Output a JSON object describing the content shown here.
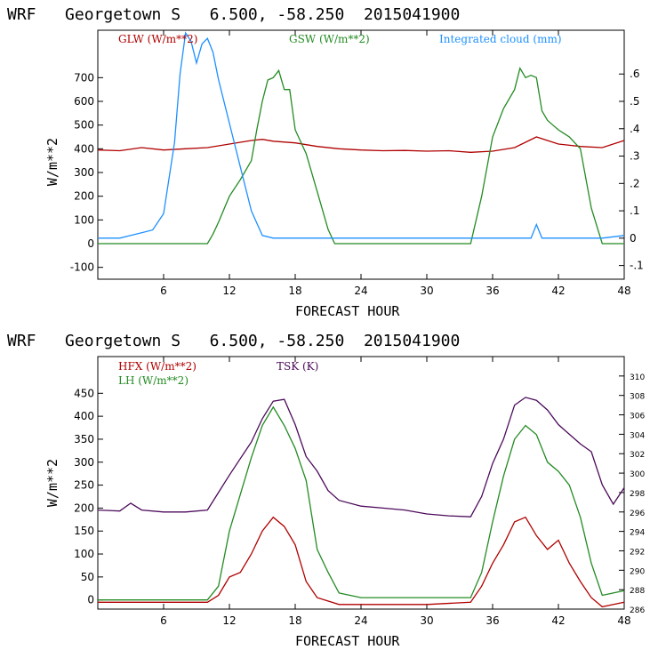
{
  "colors": {
    "red": "#b00000",
    "green": "#238b23",
    "blue": "#1e90ff",
    "purple": "#4b0a5a",
    "frame": "#000000"
  },
  "chart_data": [
    {
      "type": "line",
      "title": "WRF   Georgetown S   6.500, -58.250  2015041900",
      "xlabel": "FORECAST HOUR",
      "ylabel": "W/m**2",
      "xlim": [
        0,
        48
      ],
      "ylim": [
        -150,
        900
      ],
      "y2lim": [
        -0.15,
        0.76
      ],
      "x_ticks": [
        "6",
        "12",
        "18",
        "24",
        "30",
        "36",
        "42",
        "48"
      ],
      "y_ticks": [
        "-100",
        "0",
        "100",
        "200",
        "300",
        "400",
        "500",
        "600",
        "700"
      ],
      "y2_ticks": [
        "-.1",
        "0",
        ".1",
        ".2",
        ".3",
        ".4",
        ".5",
        ".6"
      ],
      "series": [
        {
          "name": "GLW (W/m**2)",
          "axis": "left",
          "x": [
            0,
            2,
            4,
            6,
            8,
            10,
            12,
            14,
            15,
            16,
            18,
            20,
            22,
            24,
            26,
            28,
            30,
            32,
            34,
            36,
            38,
            40,
            42,
            44,
            46,
            48
          ],
          "values": [
            395,
            392,
            405,
            395,
            400,
            405,
            420,
            435,
            440,
            432,
            425,
            410,
            400,
            395,
            392,
            393,
            390,
            392,
            385,
            390,
            405,
            450,
            420,
            410,
            405,
            435
          ]
        },
        {
          "name": "GSW (W/m**2)",
          "axis": "left",
          "x": [
            0,
            10,
            10.5,
            11,
            12,
            13,
            14,
            14.5,
            15,
            15.5,
            16,
            16.5,
            17,
            17.5,
            18,
            19,
            20,
            21,
            21.6,
            34,
            35,
            36,
            37,
            38,
            38.5,
            39,
            39.5,
            40,
            40.5,
            41,
            41.5,
            42,
            43,
            44,
            45,
            46,
            48
          ],
          "values": [
            0,
            0,
            40,
            90,
            200,
            270,
            350,
            480,
            600,
            690,
            700,
            730,
            650,
            650,
            480,
            380,
            220,
            60,
            0,
            0,
            200,
            450,
            570,
            650,
            740,
            700,
            710,
            700,
            560,
            520,
            500,
            480,
            450,
            400,
            150,
            0,
            0
          ]
        },
        {
          "name": "Integrated cloud (mm)",
          "axis": "right",
          "x": [
            0,
            2,
            3,
            4,
            5,
            6,
            7,
            7.5,
            8,
            8.5,
            9,
            9.5,
            10,
            10.5,
            11,
            12,
            13,
            14,
            15,
            16,
            20,
            24,
            39.5,
            40,
            40.5,
            46,
            48
          ],
          "values": [
            0,
            0,
            0.01,
            0.02,
            0.03,
            0.09,
            0.35,
            0.6,
            0.75,
            0.72,
            0.64,
            0.71,
            0.73,
            0.68,
            0.58,
            0.42,
            0.26,
            0.1,
            0.01,
            0,
            0,
            0,
            0,
            0.05,
            0,
            0,
            0.01
          ]
        }
      ]
    },
    {
      "type": "line",
      "title": "WRF   Georgetown S   6.500, -58.250  2015041900",
      "xlabel": "FORECAST HOUR",
      "ylabel": "W/m**2",
      "xlim": [
        0,
        48
      ],
      "ylim": [
        -20,
        530
      ],
      "y2lim": [
        286,
        312
      ],
      "x_ticks": [
        "6",
        "12",
        "18",
        "24",
        "30",
        "36",
        "42",
        "48"
      ],
      "y_ticks": [
        "0",
        "50",
        "100",
        "150",
        "200",
        "250",
        "300",
        "350",
        "400",
        "450"
      ],
      "y2_ticks": [
        "286",
        "288",
        "290",
        "292",
        "294",
        "296",
        "298",
        "300",
        "302",
        "304",
        "306",
        "308",
        "310"
      ],
      "series": [
        {
          "name": "HFX (W/m**2)",
          "axis": "left",
          "x": [
            0,
            6,
            10,
            11,
            12,
            13,
            14,
            15,
            16,
            17,
            18,
            19,
            20,
            22,
            24,
            30,
            34,
            35,
            36,
            37,
            38,
            39,
            40,
            41,
            42,
            43,
            44,
            45,
            46,
            48
          ],
          "values": [
            -5,
            -5,
            -5,
            10,
            50,
            60,
            100,
            150,
            180,
            160,
            120,
            40,
            5,
            -10,
            -10,
            -10,
            -5,
            30,
            80,
            120,
            170,
            180,
            140,
            110,
            130,
            80,
            40,
            5,
            -15,
            -5
          ]
        },
        {
          "name": "LH (W/m**2)",
          "axis": "left",
          "x": [
            0,
            6,
            10,
            11,
            12,
            13,
            14,
            15,
            16,
            17,
            18,
            19,
            20,
            21,
            22,
            24,
            30,
            34,
            35,
            36,
            37,
            38,
            39,
            40,
            41,
            42,
            43,
            44,
            45,
            46,
            48
          ],
          "values": [
            0,
            0,
            0,
            30,
            150,
            230,
            310,
            380,
            420,
            380,
            330,
            260,
            110,
            60,
            15,
            5,
            5,
            5,
            60,
            170,
            270,
            350,
            380,
            360,
            300,
            280,
            250,
            180,
            80,
            10,
            20
          ]
        },
        {
          "name": "TSK (K)",
          "axis": "right",
          "x": [
            0,
            2,
            3,
            4,
            6,
            8,
            10,
            11,
            12,
            13,
            14,
            15,
            16,
            17,
            18,
            19,
            20,
            21,
            22,
            24,
            26,
            28,
            30,
            32,
            34,
            35,
            36,
            37,
            38,
            39,
            40,
            41,
            42,
            43,
            44,
            45,
            46,
            47,
            48
          ],
          "values": [
            296.2,
            296.1,
            296.9,
            296.2,
            296.0,
            296.0,
            296.2,
            298.0,
            299.8,
            301.5,
            303.2,
            305.6,
            307.4,
            307.6,
            305.0,
            301.7,
            300.2,
            298.2,
            297.2,
            296.6,
            296.4,
            296.2,
            295.8,
            295.6,
            295.5,
            297.6,
            301.0,
            303.5,
            307.0,
            307.8,
            307.5,
            306.5,
            305.0,
            304.0,
            303.0,
            302.2,
            298.8,
            296.8,
            298.5
          ]
        }
      ]
    }
  ]
}
